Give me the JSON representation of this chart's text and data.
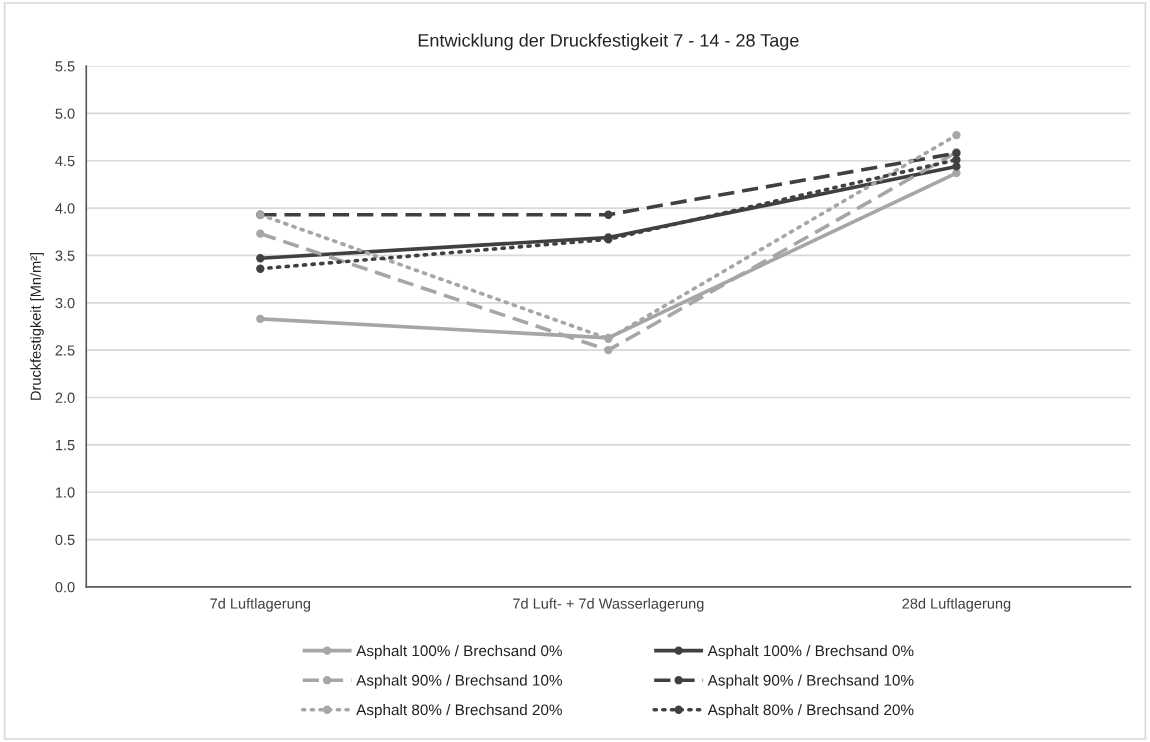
{
  "chart_data": {
    "type": "line",
    "title": "Entwicklung der Druckfestigkeit 7 - 14 - 28 Tage",
    "ylabel": "Druckfestigkeit [Mn/m²]",
    "categories": [
      "7d Luftlagerung",
      "7d Luft- + 7d Wasserlagerung",
      "28d Luftlagerung"
    ],
    "series": [
      {
        "name": "Asphalt 100% / Brechsand 0%",
        "color": "#a6a6a6",
        "line_style": "solid",
        "values": [
          2.83,
          2.63,
          4.37
        ]
      },
      {
        "name": "Asphalt 100% / Brechsand 0%",
        "color": "#404040",
        "line_style": "solid",
        "values": [
          3.47,
          3.69,
          4.44
        ]
      },
      {
        "name": "Asphalt 90% / Brechsand 10%",
        "color": "#a6a6a6",
        "line_style": "dashed",
        "values": [
          3.73,
          2.5,
          4.59
        ]
      },
      {
        "name": "Asphalt 90% / Brechsand 10%",
        "color": "#404040",
        "line_style": "dashed",
        "values": [
          3.93,
          3.93,
          4.58
        ]
      },
      {
        "name": "Asphalt 80% / Brechsand 20%",
        "color": "#a6a6a6",
        "line_style": "dotted",
        "values": [
          3.93,
          2.62,
          4.77
        ]
      },
      {
        "name": "Asphalt 80% / Brechsand 20%",
        "color": "#404040",
        "line_style": "dotted",
        "values": [
          3.36,
          3.67,
          4.51
        ]
      }
    ],
    "ylim": [
      0,
      5.5
    ],
    "yticks": [
      {
        "value": 0,
        "label": "0.0"
      },
      0.5,
      {
        "value": 1,
        "label": "1.0"
      },
      1.5,
      {
        "value": 2,
        "label": "2.0"
      },
      2.5,
      {
        "value": 3,
        "label": "3.0"
      },
      3.5,
      {
        "value": 4,
        "label": "4.0"
      },
      4.5,
      {
        "value": 5,
        "label": "5.0"
      },
      5.5
    ],
    "grid": "y",
    "legend": "bottom",
    "marker": "circle"
  }
}
